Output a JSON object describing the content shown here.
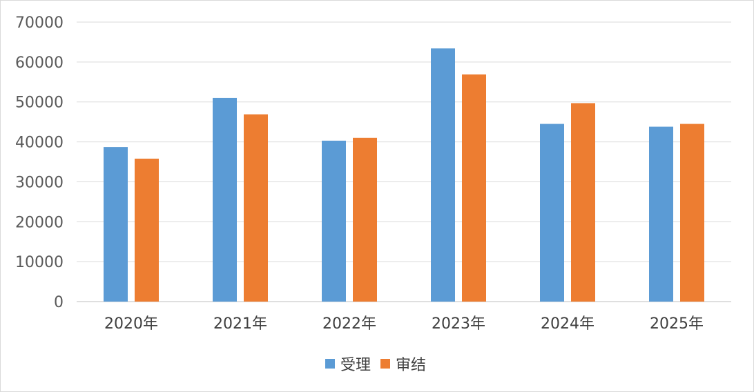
{
  "chart_data": {
    "type": "bar",
    "title": "",
    "xlabel": "",
    "ylabel": "",
    "categories": [
      "2020年",
      "2021年",
      "2022年",
      "2023年",
      "2024年",
      "2025年"
    ],
    "series": [
      {
        "name": "受理",
        "color": "#5b9bd5",
        "values": [
          38700,
          51000,
          40300,
          63400,
          44500,
          43800
        ]
      },
      {
        "name": "审结",
        "color": "#ed7d31",
        "values": [
          35800,
          46900,
          41000,
          56900,
          49700,
          44500
        ]
      }
    ],
    "ylim": [
      0,
      70000
    ],
    "yticks": [
      0,
      10000,
      20000,
      30000,
      40000,
      50000,
      60000,
      70000
    ],
    "grid": true,
    "legend_position": "bottom"
  }
}
